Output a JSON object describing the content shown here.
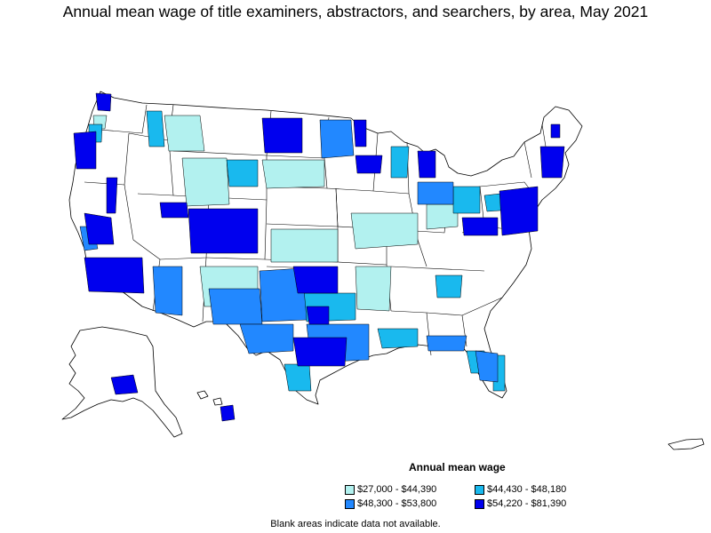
{
  "title": "Annual mean wage of title examiners, abstractors, and searchers, by area, May 2021",
  "legend": {
    "title": "Annual mean wage",
    "items": [
      {
        "label": "$27,000 - $44,390",
        "color": "#b2f1ef"
      },
      {
        "label": "$44,430 - $48,180",
        "color": "#19b9ee"
      },
      {
        "label": "$48,300 - $53,800",
        "color": "#2288ff"
      },
      {
        "label": "$54,220 - $81,390",
        "color": "#0000ee"
      }
    ]
  },
  "footnote": "Blank areas indicate data not available.",
  "colors": {
    "blank": "#ffffff",
    "border": "#000000"
  }
}
